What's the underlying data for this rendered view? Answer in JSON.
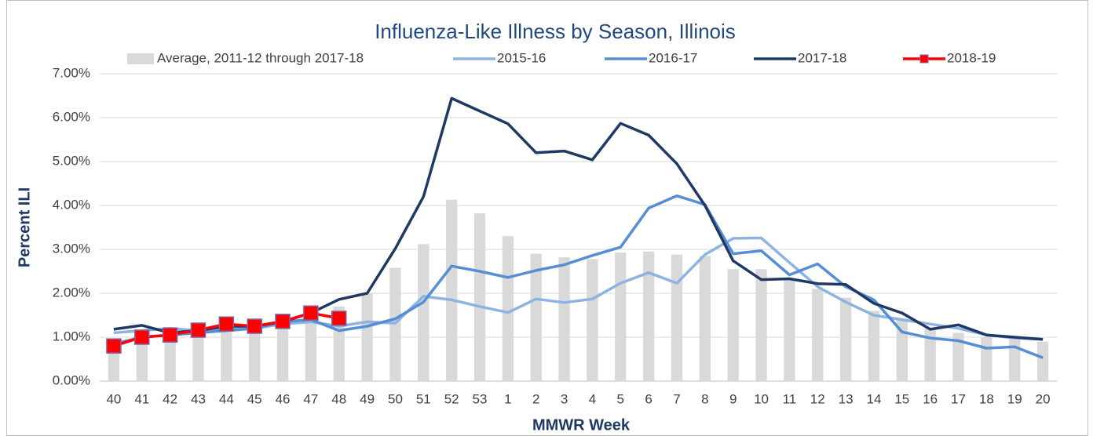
{
  "chart_data": {
    "type": "combo",
    "title": "Influenza-Like Illness by Season, Illinois",
    "x_label": "MMWR Week",
    "y_label": "Percent ILI",
    "categories": [
      "40",
      "41",
      "42",
      "43",
      "44",
      "45",
      "46",
      "47",
      "48",
      "49",
      "50",
      "51",
      "52",
      "53",
      "1",
      "2",
      "3",
      "4",
      "5",
      "6",
      "7",
      "8",
      "9",
      "10",
      "11",
      "12",
      "13",
      "14",
      "15",
      "16",
      "17",
      "18",
      "19",
      "20"
    ],
    "ylim": [
      0,
      7
    ],
    "yticks": [
      {
        "value": 0,
        "label": "0.00%"
      },
      {
        "value": 1,
        "label": "1.00%"
      },
      {
        "value": 2,
        "label": "2.00%"
      },
      {
        "value": 3,
        "label": "3.00%"
      },
      {
        "value": 4,
        "label": "4.00%"
      },
      {
        "value": 5,
        "label": "5.00%"
      },
      {
        "value": 6,
        "label": "6.00%"
      },
      {
        "value": 7,
        "label": "7.00%"
      }
    ],
    "grid": true,
    "legend": "top",
    "series": [
      {
        "name": "Average, 2011-12 through 2017-18",
        "type": "bar",
        "color": "#d9d9d9",
        "values": [
          0.95,
          1.0,
          1.05,
          1.1,
          1.2,
          1.25,
          1.35,
          1.5,
          1.7,
          2.0,
          2.58,
          3.12,
          4.13,
          3.82,
          3.3,
          2.9,
          2.82,
          2.78,
          2.93,
          2.95,
          2.88,
          2.85,
          2.55,
          2.55,
          2.35,
          2.1,
          1.9,
          1.6,
          1.4,
          1.2,
          1.1,
          1.0,
          0.95,
          0.9
        ]
      },
      {
        "name": "2015-16",
        "type": "line",
        "color": "#8db3e2",
        "values": [
          1.1,
          1.15,
          1.2,
          1.15,
          1.2,
          1.2,
          1.3,
          1.35,
          1.25,
          1.35,
          1.32,
          1.93,
          1.85,
          1.7,
          1.56,
          1.87,
          1.79,
          1.87,
          2.23,
          2.47,
          2.23,
          2.88,
          3.25,
          3.26,
          2.7,
          2.15,
          1.8,
          1.5,
          1.4,
          1.3,
          1.2,
          1.05,
          0.98,
          0.95
        ]
      },
      {
        "name": "2016-17",
        "type": "line",
        "color": "#558ed5",
        "values": [
          0.85,
          1.0,
          1.05,
          1.1,
          1.15,
          1.2,
          1.35,
          1.4,
          1.15,
          1.25,
          1.42,
          1.8,
          2.62,
          2.5,
          2.36,
          2.52,
          2.65,
          2.86,
          3.05,
          3.94,
          4.22,
          4.02,
          2.9,
          2.97,
          2.42,
          2.67,
          2.15,
          1.85,
          1.12,
          0.98,
          0.92,
          0.75,
          0.78,
          0.53
        ]
      },
      {
        "name": "2017-18",
        "type": "line",
        "color": "#1f3864",
        "values": [
          1.18,
          1.27,
          1.1,
          1.15,
          1.25,
          1.25,
          1.35,
          1.55,
          1.86,
          2.0,
          3.02,
          4.2,
          6.44,
          6.15,
          5.86,
          5.2,
          5.24,
          5.04,
          5.87,
          5.6,
          4.95,
          4.0,
          2.74,
          2.31,
          2.33,
          2.22,
          2.2,
          1.77,
          1.55,
          1.18,
          1.28,
          1.05,
          1.0,
          0.95
        ]
      },
      {
        "name": "2018-19",
        "type": "line",
        "color": "#ff0000",
        "marker": "square",
        "marker_edge": "#8064a2",
        "values": [
          0.8,
          1.0,
          1.05,
          1.16,
          1.3,
          1.25,
          1.36,
          1.55,
          1.43,
          null,
          null,
          null,
          null,
          null,
          null,
          null,
          null,
          null,
          null,
          null,
          null,
          null,
          null,
          null,
          null,
          null,
          null,
          null,
          null,
          null,
          null,
          null,
          null,
          null
        ]
      }
    ]
  }
}
